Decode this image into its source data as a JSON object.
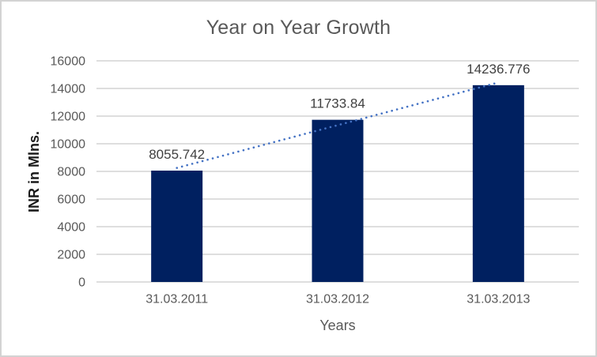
{
  "chart_data": {
    "type": "bar",
    "title": "Year on Year Growth",
    "categories": [
      "31.03.2011",
      "31.03.2012",
      "31.03.2013"
    ],
    "values": [
      8055.742,
      11733.84,
      14236.776
    ],
    "data_labels": [
      "8055.742",
      "11733.84",
      "14236.776"
    ],
    "xlabel": "Years",
    "ylabel": "INR in Mlns.",
    "ylim": [
      0,
      16000
    ],
    "yticks": [
      0,
      2000,
      4000,
      6000,
      8000,
      10000,
      12000,
      14000,
      16000
    ],
    "grid": true,
    "legend": "none",
    "trendline": {
      "type": "linear",
      "style": "dotted"
    }
  },
  "colors": {
    "bar": "#002060",
    "trendline": "#4472C4",
    "gridline": "#D9D9D9",
    "axis_line": "#D9D9D9",
    "border": "#D3D3D3",
    "title_text": "#595959",
    "tick_text": "#595959",
    "axis_title_text": "#595959",
    "data_label_text": "#404040",
    "y_axis_title_text": "#1A1A1A",
    "background": "#FFFFFF"
  }
}
